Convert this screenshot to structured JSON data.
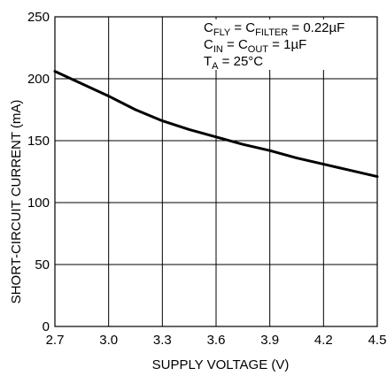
{
  "chart_data": {
    "type": "line",
    "title": "",
    "xlabel": "SUPPLY VOLTAGE (V)",
    "ylabel": "SHORT-CIRCUIT CURRENT (mA)",
    "xlim": [
      2.7,
      4.5
    ],
    "ylim": [
      0,
      250
    ],
    "x_ticks": [
      "2.7",
      "3.0",
      "3.3",
      "3.6",
      "3.9",
      "4.2",
      "4.5"
    ],
    "y_ticks": [
      "0",
      "50",
      "100",
      "150",
      "200",
      "250"
    ],
    "grid": true,
    "legend": "none",
    "series": [
      {
        "x": [
          2.7,
          2.85,
          3.0,
          3.15,
          3.3,
          3.45,
          3.6,
          3.75,
          3.9,
          4.05,
          4.2,
          4.35,
          4.5
        ],
        "y": [
          206,
          196,
          186,
          175,
          166,
          159,
          153,
          147,
          142,
          136,
          131,
          126,
          121
        ]
      }
    ],
    "annotations": [
      [
        {
          "t": "C"
        },
        {
          "t": "FLY",
          "sub": true
        },
        {
          "t": " = C"
        },
        {
          "t": "FILTER",
          "sub": true
        },
        {
          "t": " = 0.22µF"
        }
      ],
      [
        {
          "t": "C"
        },
        {
          "t": "IN",
          "sub": true
        },
        {
          "t": " = C"
        },
        {
          "t": "OUT",
          "sub": true
        },
        {
          "t": " = 1µF"
        }
      ],
      [
        {
          "t": "T"
        },
        {
          "t": "A",
          "sub": true
        },
        {
          "t": " = 25°C"
        }
      ]
    ],
    "colors": {
      "line": "#000000",
      "grid": "#000000",
      "background": "#ffffff"
    }
  }
}
